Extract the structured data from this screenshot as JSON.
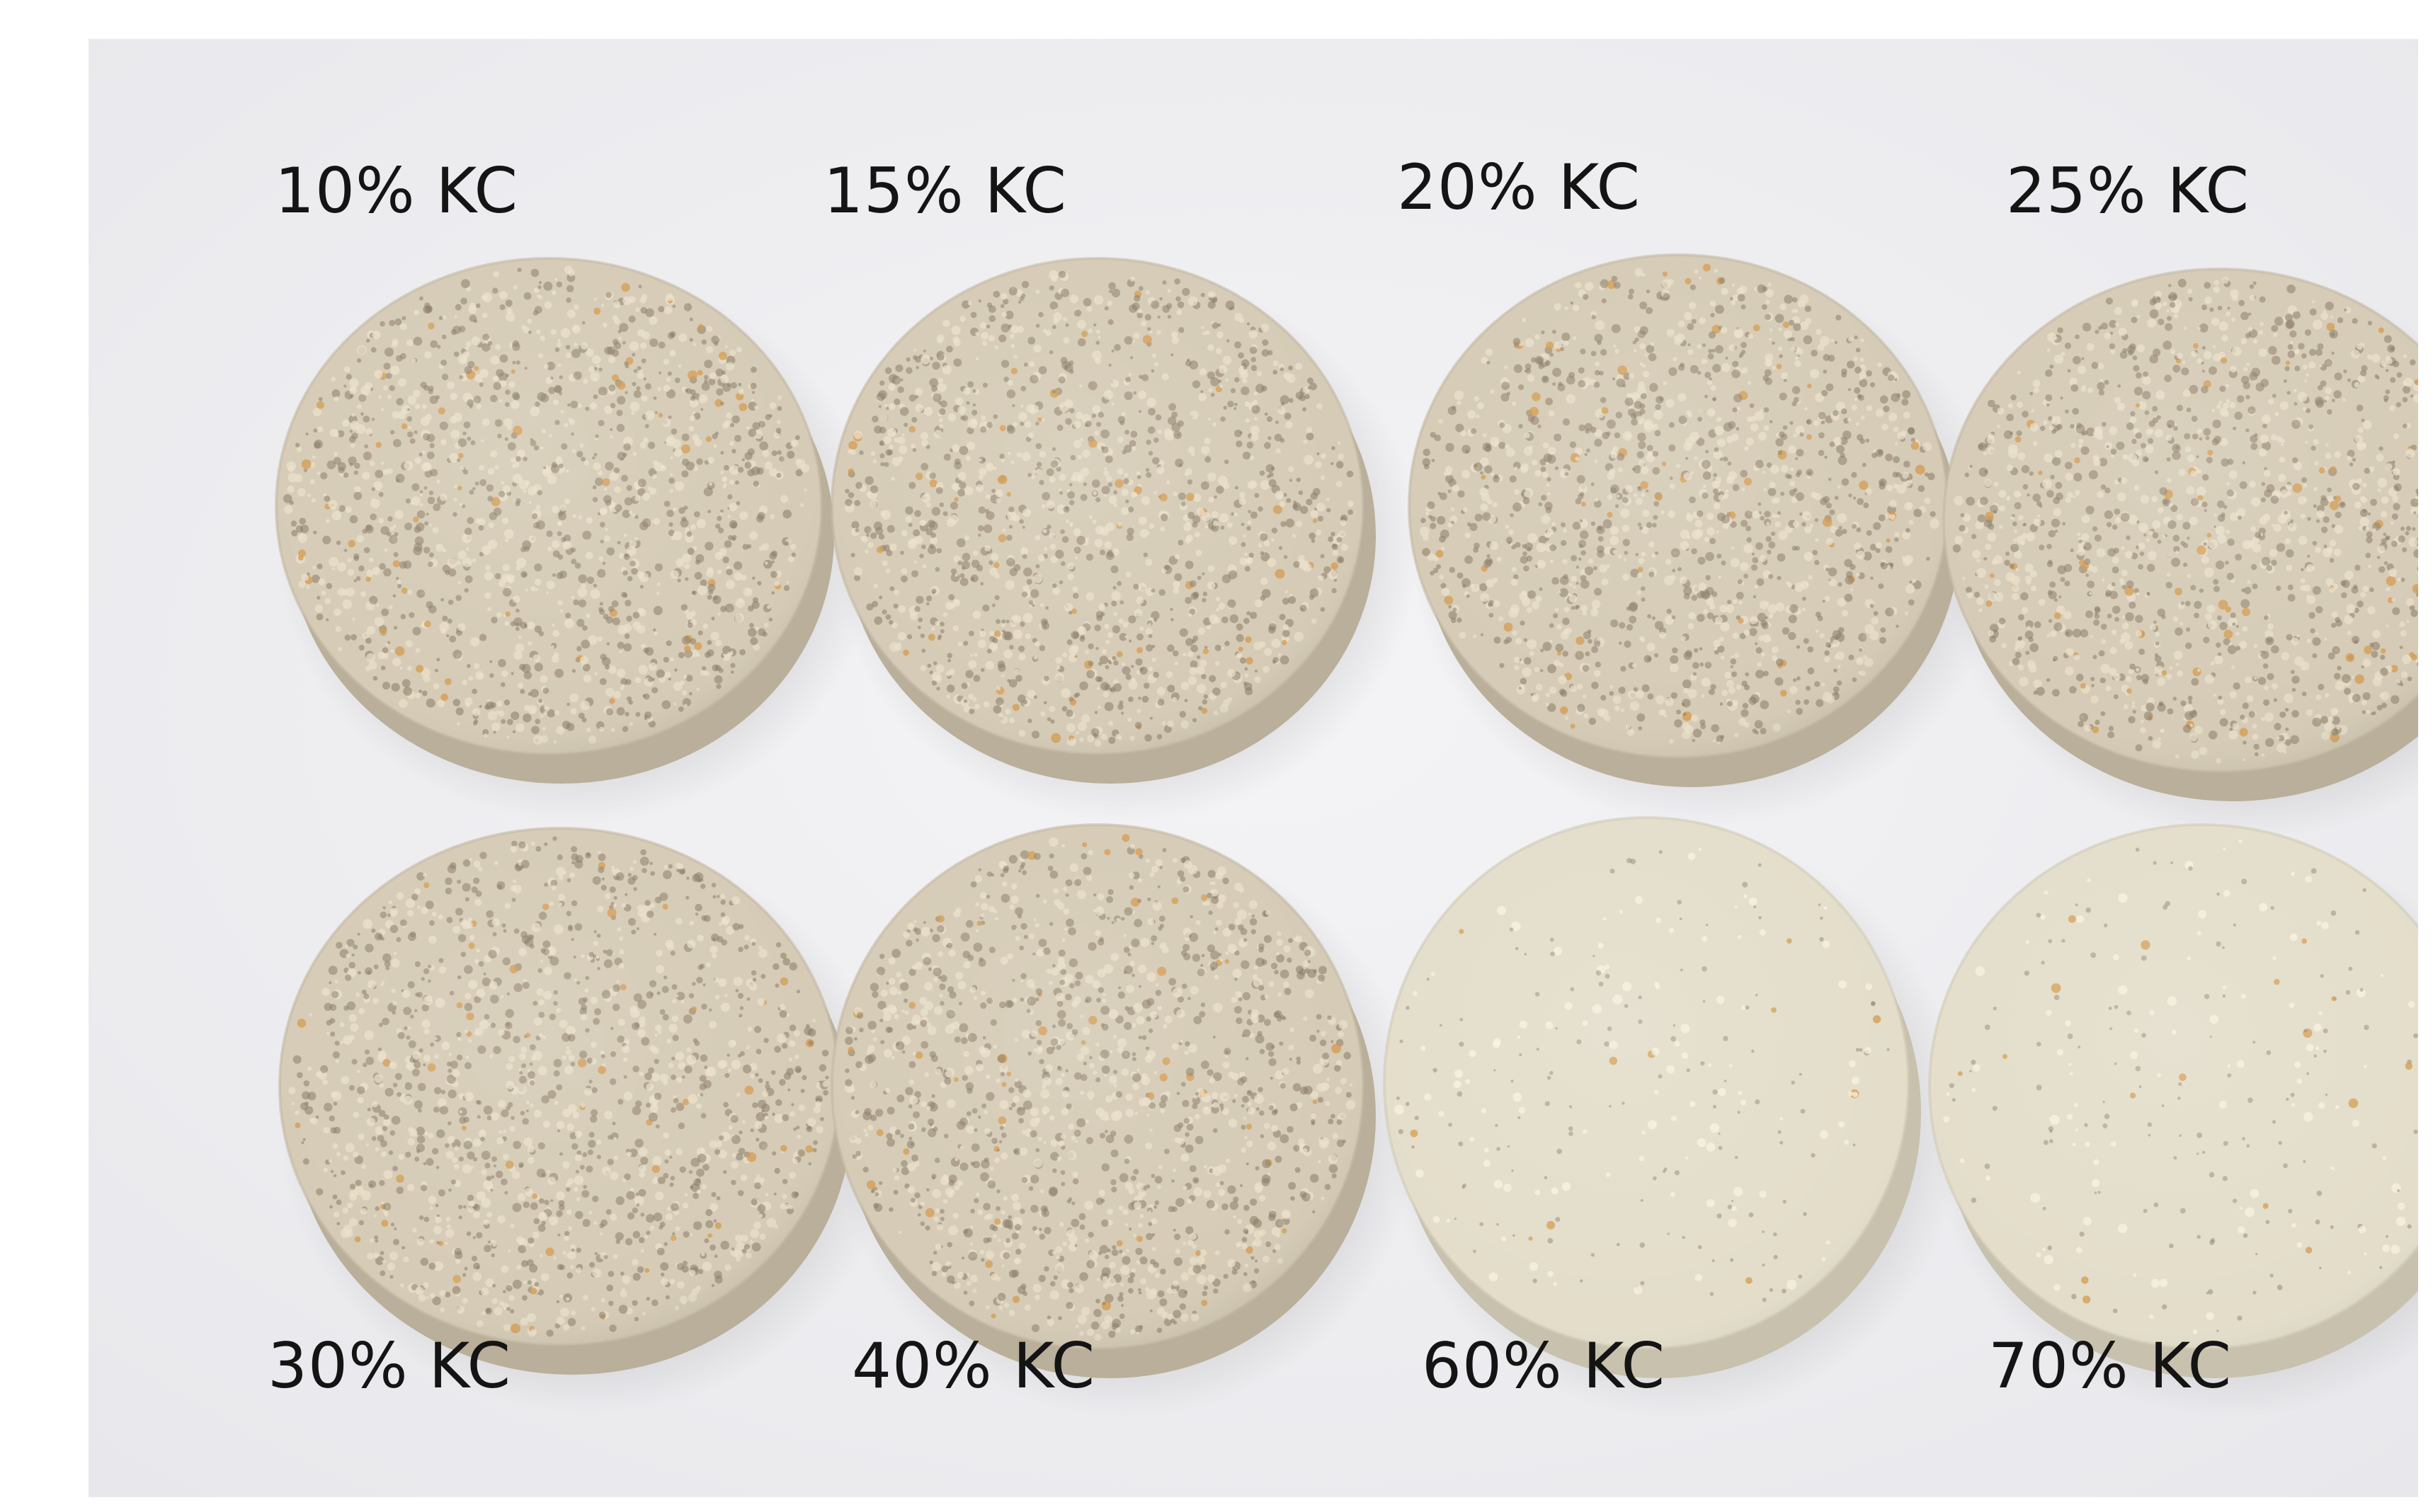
{
  "samples": [
    {
      "label": "10% KC",
      "texture": "coarse"
    },
    {
      "label": "15% KC",
      "texture": "coarse"
    },
    {
      "label": "20% KC",
      "texture": "coarse"
    },
    {
      "label": "25% KC",
      "texture": "coarse"
    },
    {
      "label": "30% KC",
      "texture": "coarse"
    },
    {
      "label": "40% KC",
      "texture": "coarse"
    },
    {
      "label": "60% KC",
      "texture": "smooth"
    },
    {
      "label": "70% KC",
      "texture": "smooth"
    }
  ],
  "colors": {
    "background": "#f0f0f2",
    "specimen_coarse": "#d5cbb6",
    "specimen_smooth": "#e3ddca",
    "speckle_dark": "#8a7b66",
    "speckle_orange": "#d49a4e",
    "label_text": "#141414"
  }
}
